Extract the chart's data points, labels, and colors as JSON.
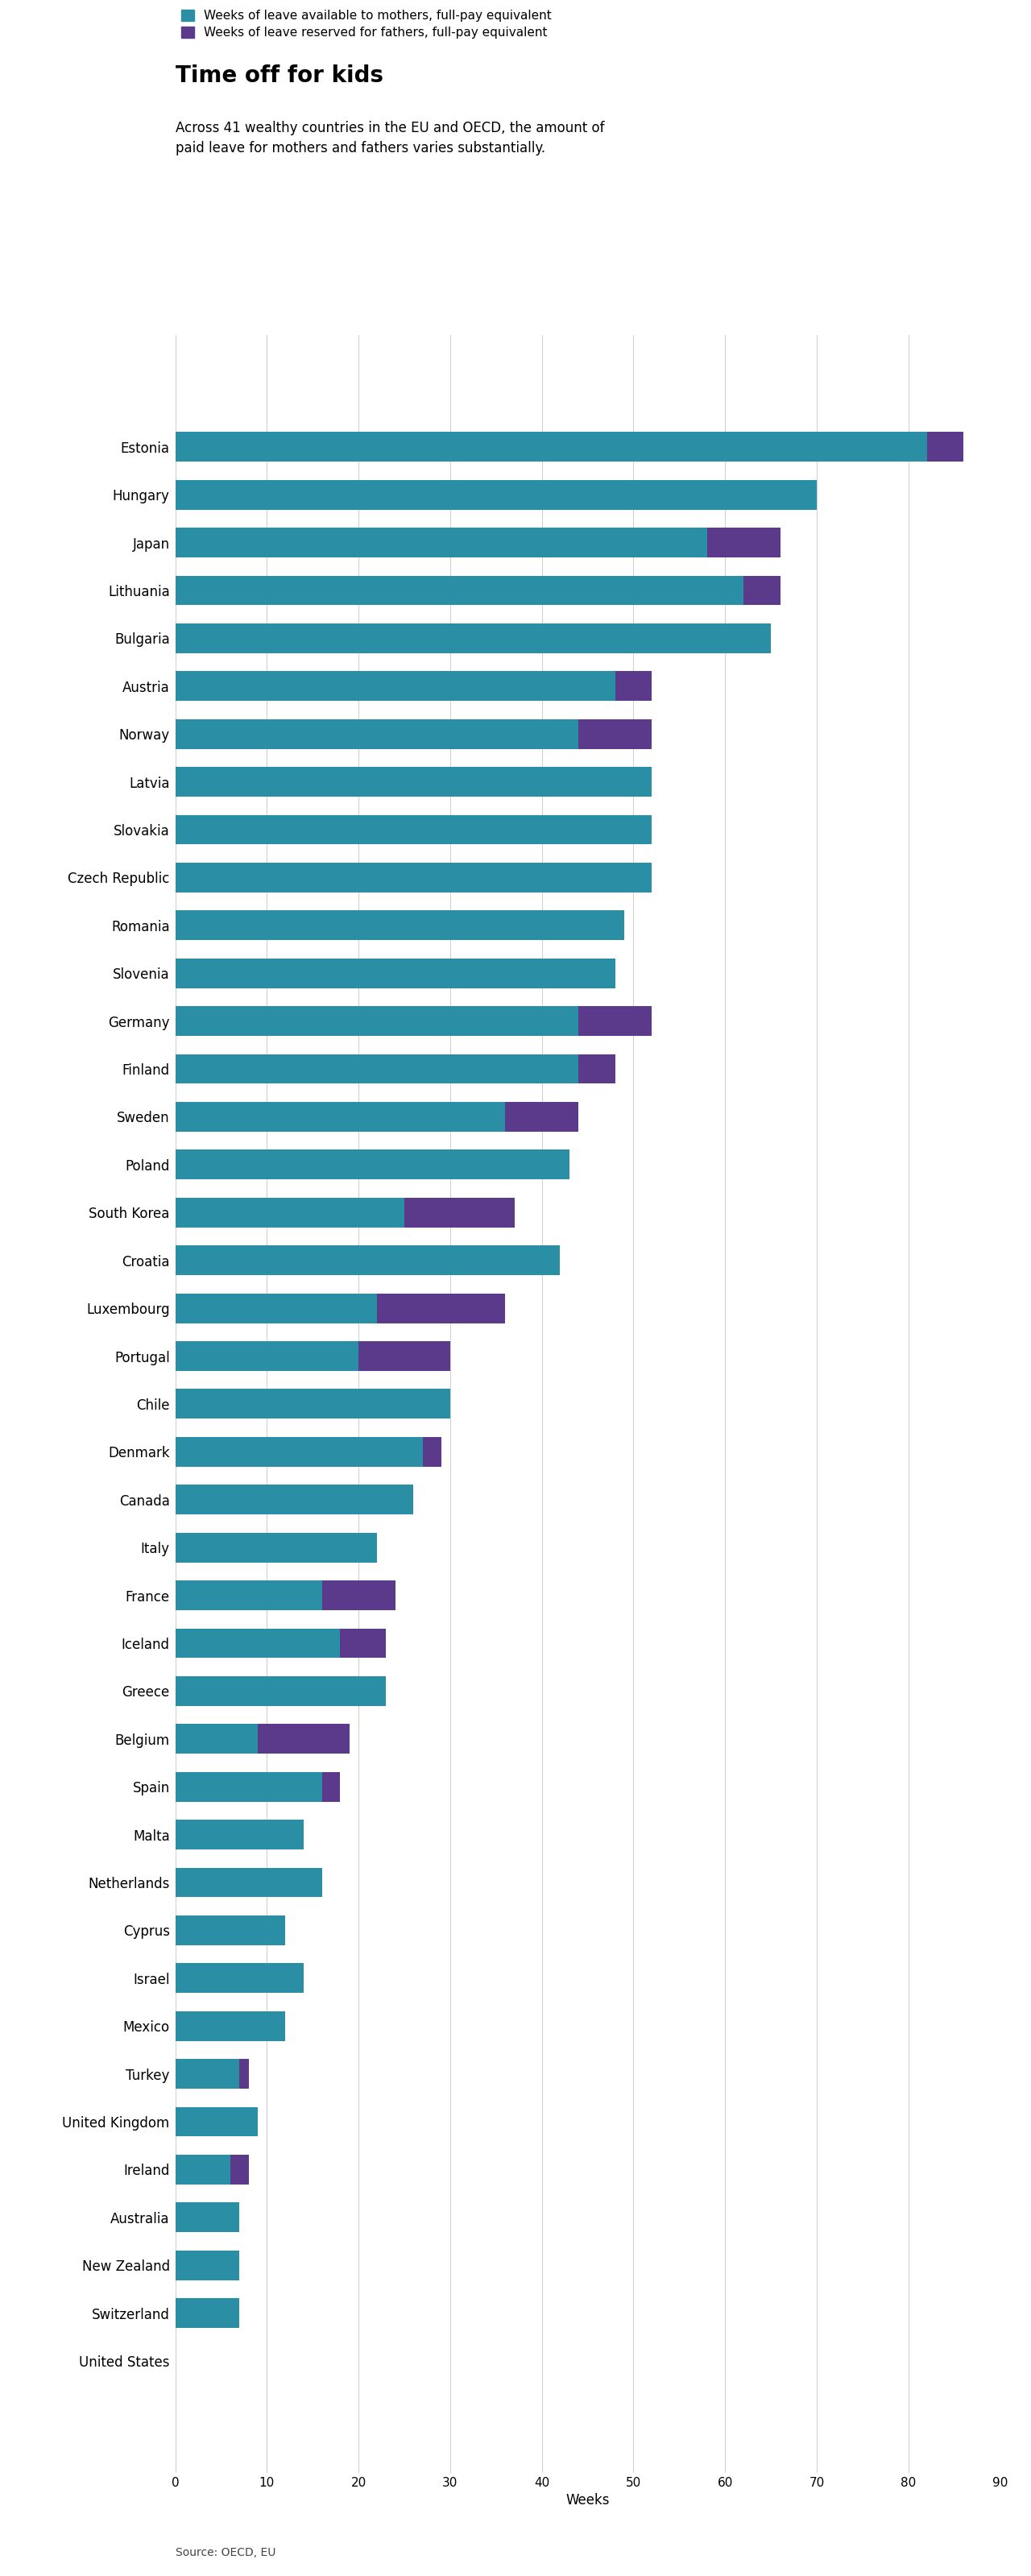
{
  "title": "Time off for kids",
  "subtitle": "Across 41 wealthy countries in the EU and OECD, the amount of\npaid leave for mothers and fathers varies substantially.",
  "legend_mothers": "Weeks of leave available to mothers, full-pay equivalent",
  "legend_fathers": "Weeks of leave reserved for fathers, full-pay equivalent",
  "source": "Source: OECD, EU",
  "xlabel": "Weeks",
  "color_mothers": "#2a8fa4",
  "color_fathers": "#5b3a8c",
  "countries": [
    "Estonia",
    "Hungary",
    "Japan",
    "Lithuania",
    "Bulgaria",
    "Austria",
    "Norway",
    "Latvia",
    "Slovakia",
    "Czech Republic",
    "Romania",
    "Slovenia",
    "Germany",
    "Finland",
    "Sweden",
    "Poland",
    "South Korea",
    "Croatia",
    "Luxembourg",
    "Portugal",
    "Chile",
    "Denmark",
    "Canada",
    "Italy",
    "France",
    "Iceland",
    "Greece",
    "Belgium",
    "Spain",
    "Malta",
    "Netherlands",
    "Cyprus",
    "Israel",
    "Mexico",
    "Turkey",
    "United Kingdom",
    "Ireland",
    "Australia",
    "New Zealand",
    "Switzerland",
    "United States"
  ],
  "mothers": [
    82,
    70,
    58,
    62,
    65,
    48,
    44,
    52,
    52,
    52,
    49,
    48,
    44,
    44,
    36,
    43,
    25,
    42,
    22,
    20,
    30,
    27,
    26,
    22,
    16,
    18,
    23,
    9,
    16,
    14,
    16,
    12,
    14,
    12,
    7,
    9,
    6,
    7,
    7,
    7,
    0
  ],
  "fathers": [
    4,
    0,
    8,
    4,
    0,
    4,
    8,
    0,
    0,
    0,
    0,
    0,
    8,
    4,
    8,
    0,
    12,
    0,
    14,
    10,
    0,
    2,
    0,
    0,
    8,
    5,
    0,
    10,
    2,
    0,
    0,
    0,
    0,
    0,
    1,
    0,
    2,
    0,
    0,
    0,
    0
  ],
  "xlim": [
    0,
    90
  ],
  "xticks": [
    0,
    10,
    20,
    30,
    40,
    50,
    60,
    70,
    80,
    90
  ],
  "background_color": "#ffffff",
  "title_fontsize": 20,
  "subtitle_fontsize": 12,
  "label_fontsize": 12,
  "tick_fontsize": 11,
  "legend_fontsize": 11,
  "source_fontsize": 10
}
